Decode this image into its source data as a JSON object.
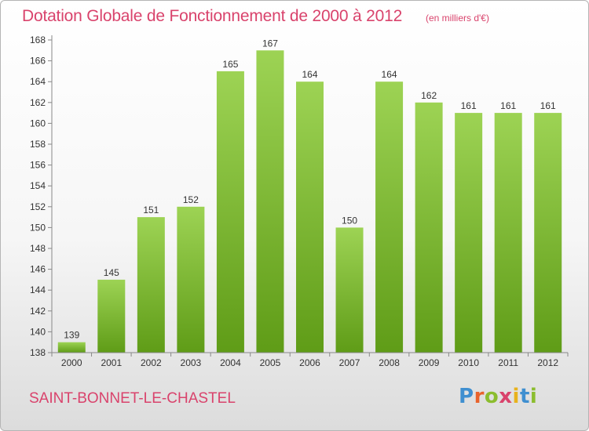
{
  "header": {
    "title": "Dotation Globale de Fonctionnement de 2000 à 2012",
    "unit": "(en milliers d'€)"
  },
  "footer": {
    "town": "SAINT-BONNET-LE-CHASTEL",
    "logo_letters": [
      "P",
      "r",
      "o",
      "x",
      "i",
      "t",
      "i"
    ],
    "logo_colors": [
      "#3f8fd0",
      "#e8632c",
      "#8bbd2e",
      "#d9436c",
      "#e8b21d",
      "#3f8fd0",
      "#8bbd2e"
    ]
  },
  "colors": {
    "bar_light": "#9dd354",
    "bar_dark": "#5f9c17",
    "title": "#d9436c"
  },
  "chart_data": {
    "type": "bar",
    "title": "Dotation Globale de Fonctionnement de 2000 à 2012",
    "subtitle": "(en milliers d'€)",
    "categories": [
      "2000",
      "2001",
      "2002",
      "2003",
      "2004",
      "2005",
      "2006",
      "2007",
      "2008",
      "2009",
      "2010",
      "2011",
      "2012"
    ],
    "values": [
      139,
      145,
      151,
      152,
      165,
      167,
      164,
      150,
      164,
      162,
      161,
      161,
      161
    ],
    "ylim": [
      138,
      168
    ],
    "yticks": [
      138,
      140,
      142,
      144,
      146,
      148,
      150,
      152,
      154,
      156,
      158,
      160,
      162,
      164,
      166,
      168
    ],
    "grid": false,
    "legend": "none"
  }
}
